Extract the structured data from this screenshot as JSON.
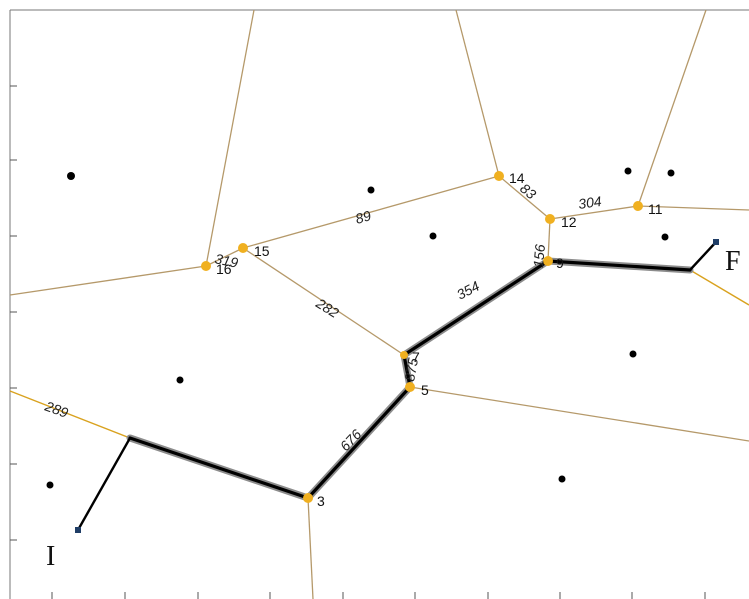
{
  "start_label": "I",
  "end_label": "F",
  "vertex_labels": [
    "3",
    "5",
    "7",
    "9",
    "11",
    "12",
    "14",
    "15",
    "16"
  ],
  "edge_weights": [
    "289",
    "676",
    "875",
    "354",
    "156",
    "304",
    "83",
    "89",
    "319",
    "282"
  ],
  "colors": {
    "diagram_edge": "#b5996a",
    "highlight_edge": "#d9a21f",
    "vertex": "#f0b020",
    "path": "#000000",
    "site": "#000000"
  }
}
